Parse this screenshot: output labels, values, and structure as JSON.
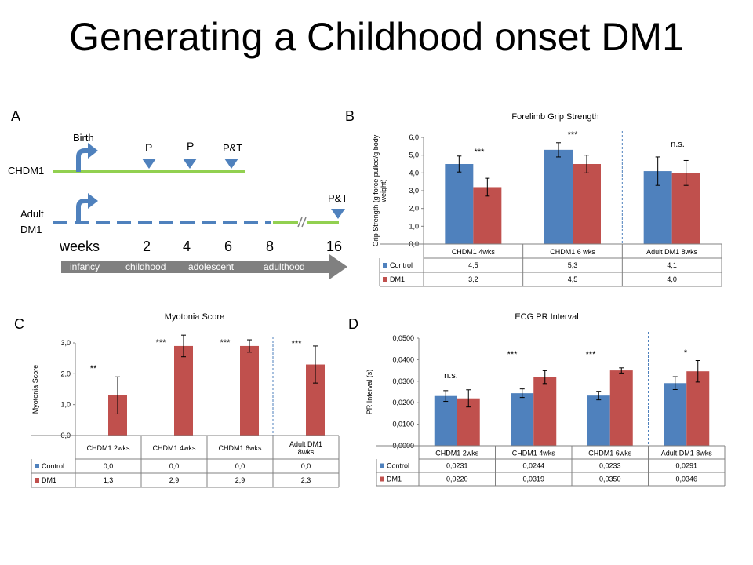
{
  "page": {
    "title": "Generating a Childhood onset DM1",
    "panel_letters": [
      "A",
      "B",
      "C",
      "D"
    ]
  },
  "timeline": {
    "labels": {
      "birth": "Birth",
      "chdm1": "CHDM1",
      "adult_dm1_line1": "Adult",
      "adult_dm1_line2": "DM1",
      "p1": "P",
      "p2": "P",
      "pt1": "P&T",
      "pt2": "P&T"
    },
    "weeks_label": "weeks",
    "weeks": [
      "2",
      "4",
      "6",
      "8",
      "16"
    ],
    "stages": [
      "infancy",
      "childhood",
      "adolescent",
      "adulthood"
    ],
    "colors": {
      "chdm1_line": "#92d050",
      "adult_line": "#4f81bd",
      "marker": "#4f81bd",
      "arrow": "#4f81bd",
      "stage_arrow": "#808080"
    }
  },
  "chart_data": [
    {
      "type": "bar",
      "title": "Forelimb Grip Strength",
      "ylabel": "Grip Strength (g force pulled/g body weight)",
      "ylim": [
        0,
        6
      ],
      "yticks": [
        "0,0",
        "1,0",
        "2,0",
        "3,0",
        "4,0",
        "5,0",
        "6,0"
      ],
      "categories": [
        "CHDM1 4wks",
        "CHDM1 6 wks",
        "Adult DM1 8wks"
      ],
      "series": [
        {
          "name": "Control",
          "color": "#4f81bd",
          "values": [
            4.5,
            5.3,
            4.1
          ],
          "labels": [
            "4,5",
            "5,3",
            "4,1"
          ],
          "err": [
            0.45,
            0.4,
            0.8
          ]
        },
        {
          "name": "DM1",
          "color": "#c0504d",
          "values": [
            3.2,
            4.5,
            4.0
          ],
          "labels": [
            "3,2",
            "4,5",
            "4,0"
          ],
          "err": [
            0.5,
            0.5,
            0.7
          ]
        }
      ],
      "annotations": [
        "***",
        "***",
        "n.s."
      ],
      "grid": false,
      "legend": "table"
    },
    {
      "type": "bar",
      "title": "Myotonia Score",
      "ylabel": "Myotonia Score",
      "ylim": [
        0,
        3
      ],
      "yticks": [
        "0,0",
        "1,0",
        "2,0",
        "3,0"
      ],
      "categories": [
        "CHDM1 2wks",
        "CHDM1 4wks",
        "CHDM1 6wks",
        "Adult DM1 8wks"
      ],
      "series": [
        {
          "name": "Control",
          "color": "#4f81bd",
          "values": [
            0,
            0,
            0,
            0
          ],
          "labels": [
            "0,0",
            "0,0",
            "0,0",
            "0,0"
          ],
          "err": [
            0,
            0,
            0,
            0
          ]
        },
        {
          "name": "DM1",
          "color": "#c0504d",
          "values": [
            1.3,
            2.9,
            2.9,
            2.3
          ],
          "labels": [
            "1,3",
            "2,9",
            "2,9",
            "2,3"
          ],
          "err": [
            0.6,
            0.35,
            0.2,
            0.6
          ]
        }
      ],
      "annotations": [
        "**",
        "***",
        "***",
        "***"
      ],
      "grid": false,
      "legend": "table"
    },
    {
      "type": "bar",
      "title": "ECG PR Interval",
      "ylabel": "PR Interval (s)",
      "ylim": [
        0,
        0.05
      ],
      "yticks": [
        "0,0000",
        "0,0100",
        "0,0200",
        "0,0300",
        "0,0400",
        "0,0500"
      ],
      "categories": [
        "CHDM1 2wks",
        "CHDM1 4wks",
        "CHDM1 6wks",
        "Adult DM1 8wks"
      ],
      "series": [
        {
          "name": "Control",
          "color": "#4f81bd",
          "values": [
            0.0231,
            0.0244,
            0.0233,
            0.0291
          ],
          "labels": [
            "0,0231",
            "0,0244",
            "0,0233",
            "0,0291"
          ],
          "err": [
            0.0025,
            0.002,
            0.002,
            0.003
          ]
        },
        {
          "name": "DM1",
          "color": "#c0504d",
          "values": [
            0.022,
            0.0319,
            0.035,
            0.0346
          ],
          "labels": [
            "0,0220",
            "0,0319",
            "0,0350",
            "0,0346"
          ],
          "err": [
            0.004,
            0.003,
            0.0012,
            0.005
          ]
        }
      ],
      "annotations": [
        "n.s.",
        "***",
        "***",
        "*"
      ],
      "grid": false,
      "legend": "table"
    }
  ]
}
